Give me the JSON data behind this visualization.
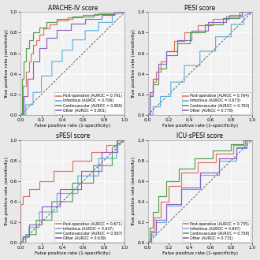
{
  "panels": [
    {
      "title": "APACHE-IV score",
      "legend": [
        {
          "label": "Post-operative (AUROC = 0.791)",
          "color": "#e07060"
        },
        {
          "label": "Infectious (AUROC = 0.706)",
          "color": "#60b0e0"
        },
        {
          "label": "Cardiovascular (AUROC = 0.865)",
          "color": "#50a050"
        },
        {
          "label": "Other (AUROC = 0.801)",
          "color": "#9060c0"
        }
      ],
      "curves": [
        {
          "color": "#e07060",
          "fpr": [
            0,
            0.02,
            0.02,
            0.05,
            0.05,
            0.08,
            0.08,
            0.1,
            0.1,
            0.12,
            0.12,
            0.15,
            0.15,
            0.18,
            0.18,
            0.22,
            0.22,
            0.28,
            0.28,
            0.35,
            0.35,
            0.45,
            0.45,
            0.6,
            0.6,
            0.75,
            0.75,
            0.9,
            0.9,
            1.0
          ],
          "tpr": [
            0,
            0,
            0.28,
            0.28,
            0.42,
            0.42,
            0.52,
            0.52,
            0.6,
            0.6,
            0.68,
            0.68,
            0.73,
            0.73,
            0.78,
            0.78,
            0.84,
            0.84,
            0.88,
            0.88,
            0.92,
            0.92,
            0.95,
            0.95,
            0.97,
            0.97,
            0.99,
            0.99,
            1.0,
            1.0
          ]
        },
        {
          "color": "#60b0e0",
          "fpr": [
            0,
            0.05,
            0.05,
            0.12,
            0.12,
            0.2,
            0.2,
            0.3,
            0.3,
            0.4,
            0.4,
            0.5,
            0.5,
            0.62,
            0.62,
            0.75,
            0.75,
            0.88,
            0.88,
            1.0
          ],
          "tpr": [
            0,
            0,
            0.1,
            0.1,
            0.22,
            0.22,
            0.38,
            0.38,
            0.52,
            0.52,
            0.63,
            0.63,
            0.73,
            0.73,
            0.82,
            0.82,
            0.9,
            0.9,
            0.97,
            1.0
          ]
        },
        {
          "color": "#50a050",
          "fpr": [
            0,
            0.01,
            0.01,
            0.03,
            0.03,
            0.05,
            0.05,
            0.08,
            0.08,
            0.12,
            0.12,
            0.18,
            0.18,
            0.25,
            0.25,
            0.35,
            0.35,
            0.5,
            0.5,
            0.7,
            0.7,
            0.9,
            0.9,
            1.0
          ],
          "tpr": [
            0,
            0,
            0.35,
            0.35,
            0.52,
            0.52,
            0.65,
            0.65,
            0.73,
            0.73,
            0.8,
            0.8,
            0.85,
            0.85,
            0.9,
            0.9,
            0.93,
            0.93,
            0.96,
            0.96,
            0.98,
            0.98,
            1.0,
            1.0
          ]
        },
        {
          "color": "#9060c0",
          "fpr": [
            0,
            0.03,
            0.03,
            0.07,
            0.07,
            0.12,
            0.12,
            0.18,
            0.18,
            0.25,
            0.25,
            0.35,
            0.35,
            0.48,
            0.48,
            0.62,
            0.62,
            0.78,
            0.78,
            0.9,
            0.9,
            1.0
          ],
          "tpr": [
            0,
            0,
            0.18,
            0.18,
            0.35,
            0.35,
            0.52,
            0.52,
            0.65,
            0.65,
            0.75,
            0.75,
            0.83,
            0.83,
            0.89,
            0.89,
            0.93,
            0.93,
            0.97,
            0.97,
            1.0,
            1.0
          ]
        }
      ]
    },
    {
      "title": "PESI score",
      "legend": [
        {
          "label": "Post-operative (AUROC = 0.764)",
          "color": "#e07060"
        },
        {
          "label": "Infectious (AUROC = 0.673)",
          "color": "#60b0e0"
        },
        {
          "label": "Cardiovascular (AUROC = 0.763)",
          "color": "#50a050"
        },
        {
          "label": "Other (AUROC = 0.778)",
          "color": "#9060c0"
        }
      ],
      "curves": [
        {
          "color": "#e07060",
          "fpr": [
            0,
            0.02,
            0.02,
            0.05,
            0.05,
            0.08,
            0.08,
            0.12,
            0.12,
            0.18,
            0.18,
            0.25,
            0.25,
            0.35,
            0.35,
            0.48,
            0.48,
            0.62,
            0.62,
            0.78,
            0.78,
            0.9,
            0.9,
            1.0
          ],
          "tpr": [
            0,
            0,
            0.2,
            0.2,
            0.32,
            0.32,
            0.42,
            0.42,
            0.52,
            0.52,
            0.62,
            0.62,
            0.72,
            0.72,
            0.8,
            0.8,
            0.87,
            0.87,
            0.93,
            0.93,
            0.97,
            0.97,
            1.0,
            1.0
          ]
        },
        {
          "color": "#60b0e0",
          "fpr": [
            0,
            0.05,
            0.05,
            0.12,
            0.12,
            0.22,
            0.22,
            0.35,
            0.35,
            0.5,
            0.5,
            0.65,
            0.65,
            0.8,
            0.8,
            0.92,
            0.92,
            1.0
          ],
          "tpr": [
            0,
            0,
            0.08,
            0.08,
            0.18,
            0.18,
            0.32,
            0.32,
            0.48,
            0.48,
            0.62,
            0.62,
            0.76,
            0.76,
            0.88,
            0.88,
            0.96,
            1.0
          ]
        },
        {
          "color": "#50a050",
          "fpr": [
            0,
            0.02,
            0.02,
            0.05,
            0.05,
            0.1,
            0.1,
            0.18,
            0.18,
            0.28,
            0.28,
            0.4,
            0.4,
            0.55,
            0.55,
            0.72,
            0.72,
            0.88,
            0.88,
            1.0
          ],
          "tpr": [
            0,
            0,
            0.18,
            0.18,
            0.3,
            0.3,
            0.45,
            0.45,
            0.58,
            0.58,
            0.7,
            0.7,
            0.8,
            0.8,
            0.88,
            0.88,
            0.94,
            0.94,
            1.0,
            1.0
          ]
        },
        {
          "color": "#9060c0",
          "fpr": [
            0,
            0.02,
            0.02,
            0.05,
            0.05,
            0.1,
            0.1,
            0.18,
            0.18,
            0.28,
            0.28,
            0.42,
            0.42,
            0.58,
            0.58,
            0.75,
            0.75,
            0.9,
            0.9,
            1.0
          ],
          "tpr": [
            0,
            0,
            0.22,
            0.22,
            0.35,
            0.35,
            0.5,
            0.5,
            0.62,
            0.62,
            0.73,
            0.73,
            0.82,
            0.82,
            0.9,
            0.9,
            0.96,
            0.96,
            1.0,
            1.0
          ]
        }
      ]
    },
    {
      "title": "sPESI score",
      "legend": [
        {
          "label": "Post-operative (AUROC = 0.671)",
          "color": "#e07060"
        },
        {
          "label": "Infectious (AUROC = 0.637)",
          "color": "#60b0e0"
        },
        {
          "label": "Cardiovascular (AUROC = 0.567)",
          "color": "#50a050"
        },
        {
          "label": "Other (AUROC = 0.639)",
          "color": "#9060c0"
        }
      ],
      "curves": [
        {
          "color": "#e07060",
          "fpr": [
            0,
            0.0,
            0.0,
            0.02,
            0.02,
            0.08,
            0.08,
            0.18,
            0.18,
            0.32,
            0.32,
            0.5,
            0.5,
            0.68,
            0.68,
            0.82,
            0.82,
            0.92,
            0.92,
            1.0
          ],
          "tpr": [
            0,
            0,
            0.38,
            0.38,
            0.45,
            0.45,
            0.52,
            0.52,
            0.6,
            0.6,
            0.7,
            0.7,
            0.8,
            0.8,
            0.88,
            0.88,
            0.95,
            0.95,
            1.0,
            1.0
          ]
        },
        {
          "color": "#60b0e0",
          "fpr": [
            0,
            0.02,
            0.02,
            0.08,
            0.08,
            0.18,
            0.18,
            0.35,
            0.35,
            0.55,
            0.55,
            0.75,
            0.75,
            0.92,
            0.92,
            1.0
          ],
          "tpr": [
            0,
            0,
            0.05,
            0.05,
            0.15,
            0.15,
            0.3,
            0.3,
            0.48,
            0.48,
            0.65,
            0.65,
            0.82,
            0.82,
            0.95,
            1.0
          ]
        },
        {
          "color": "#50a050",
          "fpr": [
            0,
            0.05,
            0.05,
            0.15,
            0.15,
            0.3,
            0.3,
            0.5,
            0.5,
            0.7,
            0.7,
            0.88,
            0.88,
            1.0
          ],
          "tpr": [
            0,
            0,
            0.08,
            0.08,
            0.22,
            0.22,
            0.4,
            0.4,
            0.58,
            0.58,
            0.75,
            0.75,
            0.92,
            1.0
          ]
        },
        {
          "color": "#9060c0",
          "fpr": [
            0,
            0.02,
            0.02,
            0.08,
            0.08,
            0.2,
            0.2,
            0.38,
            0.38,
            0.58,
            0.58,
            0.78,
            0.78,
            0.93,
            0.93,
            1.0
          ],
          "tpr": [
            0,
            0,
            0.06,
            0.06,
            0.18,
            0.18,
            0.35,
            0.35,
            0.52,
            0.52,
            0.7,
            0.7,
            0.88,
            0.88,
            1.0,
            1.0
          ]
        }
      ]
    },
    {
      "title": "ICU-sPESI score",
      "legend": [
        {
          "label": "Post-operative (AUROC = 0.735)",
          "color": "#e07060"
        },
        {
          "label": "Infectious (AUROC = 0.687)",
          "color": "#60b0e0"
        },
        {
          "label": "Cardiovascular (AUROC = 0.759)",
          "color": "#50a050"
        },
        {
          "label": "Other (AUROC = 0.731)",
          "color": "#9060c0"
        }
      ],
      "curves": [
        {
          "color": "#e07060",
          "fpr": [
            0,
            0.02,
            0.02,
            0.06,
            0.06,
            0.12,
            0.12,
            0.2,
            0.2,
            0.32,
            0.32,
            0.48,
            0.48,
            0.65,
            0.65,
            0.82,
            0.82,
            0.93,
            0.93,
            1.0
          ],
          "tpr": [
            0,
            0,
            0.12,
            0.12,
            0.25,
            0.25,
            0.4,
            0.4,
            0.55,
            0.55,
            0.68,
            0.68,
            0.78,
            0.78,
            0.87,
            0.87,
            0.95,
            0.95,
            1.0,
            1.0
          ]
        },
        {
          "color": "#60b0e0",
          "fpr": [
            0,
            0.03,
            0.03,
            0.08,
            0.08,
            0.18,
            0.18,
            0.32,
            0.32,
            0.5,
            0.5,
            0.68,
            0.68,
            0.85,
            0.85,
            0.95,
            0.95,
            1.0
          ],
          "tpr": [
            0,
            0,
            0.08,
            0.08,
            0.2,
            0.2,
            0.36,
            0.36,
            0.52,
            0.52,
            0.66,
            0.66,
            0.8,
            0.8,
            0.92,
            0.92,
            1.0,
            1.0
          ]
        },
        {
          "color": "#50a050",
          "fpr": [
            0,
            0.02,
            0.02,
            0.05,
            0.05,
            0.1,
            0.1,
            0.18,
            0.18,
            0.3,
            0.3,
            0.45,
            0.45,
            0.62,
            0.62,
            0.8,
            0.8,
            0.92,
            0.92,
            1.0
          ],
          "tpr": [
            0,
            0,
            0.15,
            0.15,
            0.3,
            0.3,
            0.45,
            0.45,
            0.6,
            0.6,
            0.72,
            0.72,
            0.82,
            0.82,
            0.9,
            0.9,
            0.96,
            0.96,
            1.0,
            1.0
          ]
        },
        {
          "color": "#9060c0",
          "fpr": [
            0,
            0.03,
            0.03,
            0.08,
            0.08,
            0.18,
            0.18,
            0.32,
            0.32,
            0.5,
            0.5,
            0.68,
            0.68,
            0.85,
            0.85,
            0.95,
            0.95,
            1.0
          ],
          "tpr": [
            0,
            0,
            0.1,
            0.1,
            0.22,
            0.22,
            0.38,
            0.38,
            0.54,
            0.54,
            0.68,
            0.68,
            0.82,
            0.82,
            0.93,
            0.93,
            1.0,
            1.0
          ]
        }
      ]
    }
  ],
  "fig_bg": "#e8e8e8",
  "panel_bg": "#f2f2f2",
  "grid_color": "#ffffff",
  "diag_color": "#555555",
  "title_fontsize": 5.5,
  "label_fontsize": 4.2,
  "tick_fontsize": 4.2,
  "legend_fontsize": 3.3,
  "linewidth": 0.85
}
